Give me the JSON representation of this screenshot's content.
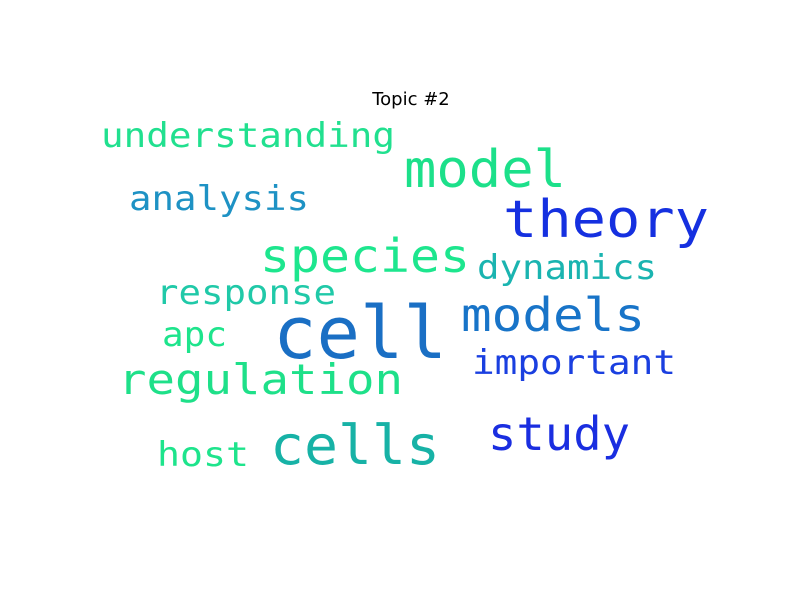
{
  "chart_data": {
    "type": "wordcloud",
    "title": "Topic #2",
    "words": [
      {
        "text": "cell",
        "color": "#1a6fc4"
      },
      {
        "text": "theory",
        "color": "#1530e0"
      },
      {
        "text": "model",
        "color": "#1ce08a"
      },
      {
        "text": "species",
        "color": "#1de68e"
      },
      {
        "text": "cells",
        "color": "#17b2a6"
      },
      {
        "text": "models",
        "color": "#1874c8"
      },
      {
        "text": "regulation",
        "color": "#1ee089"
      },
      {
        "text": "study",
        "color": "#1a2ee0"
      },
      {
        "text": "understanding",
        "color": "#21e08f"
      },
      {
        "text": "analysis",
        "color": "#1e92c4"
      },
      {
        "text": "dynamics",
        "color": "#1ab4b0"
      },
      {
        "text": "response",
        "color": "#20c9a8"
      },
      {
        "text": "important",
        "color": "#1a3fe0"
      },
      {
        "text": "apc",
        "color": "#1ee48c"
      },
      {
        "text": "host",
        "color": "#1ee48c"
      }
    ]
  }
}
